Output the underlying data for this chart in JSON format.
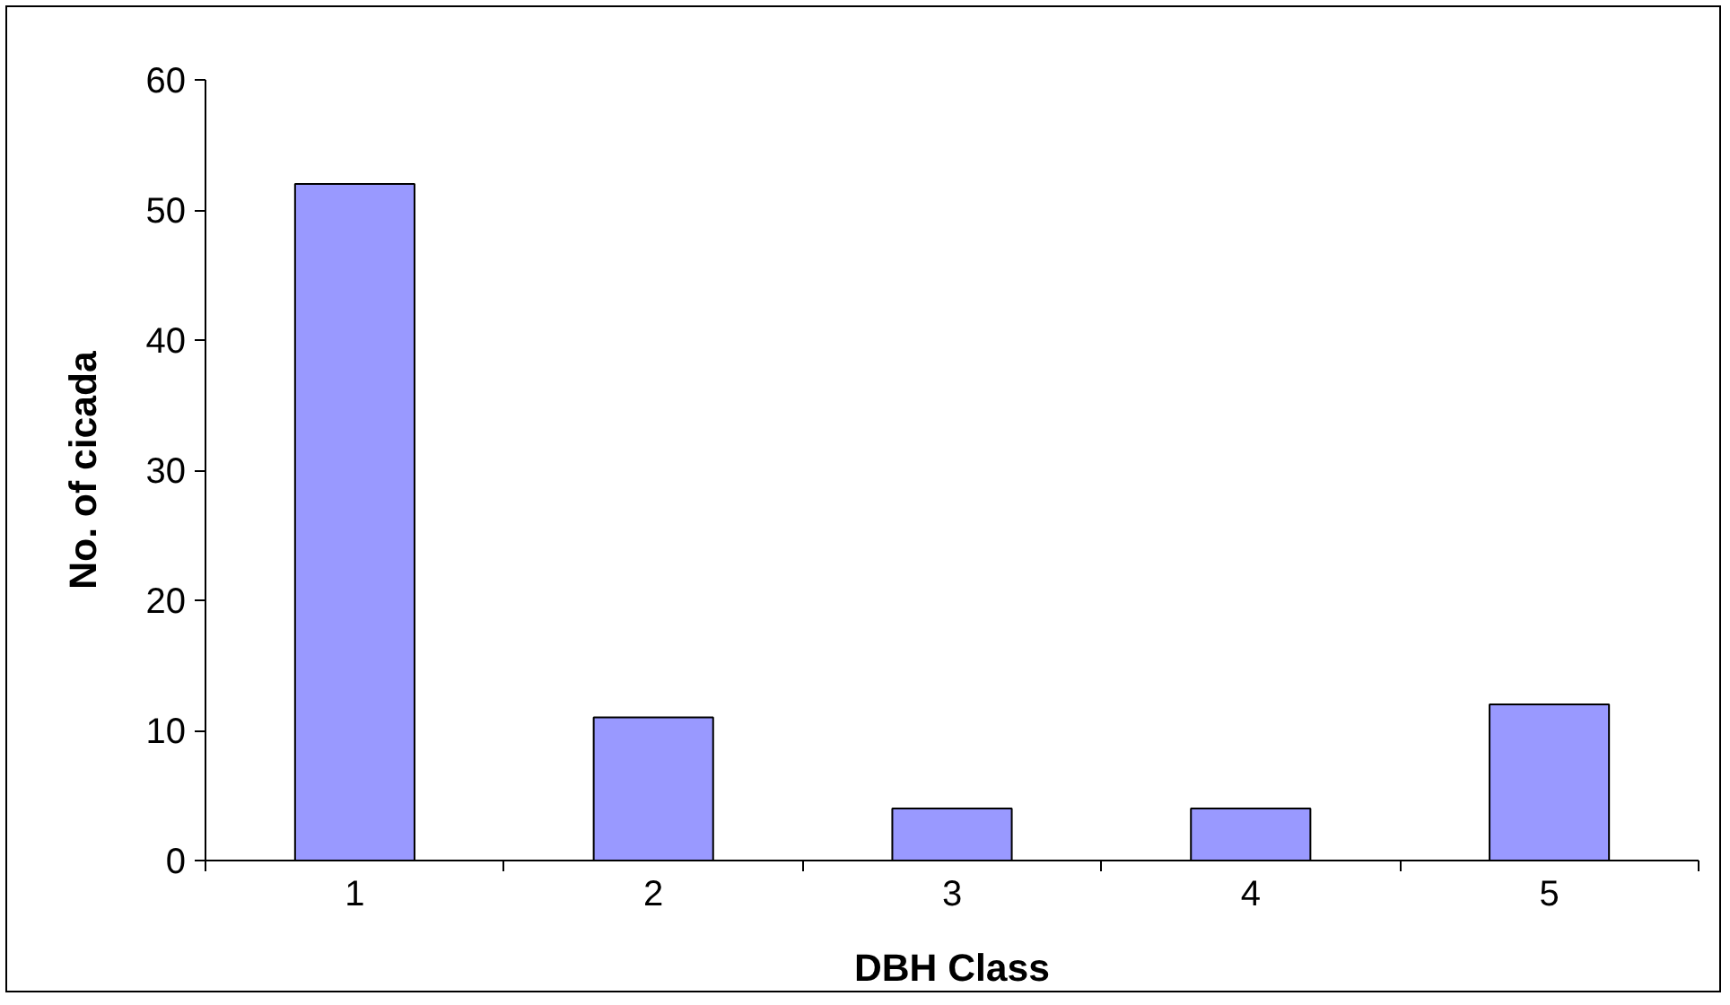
{
  "chart_data": {
    "type": "bar",
    "xlabel": "DBH Class",
    "ylabel": "No. of cicada",
    "categories": [
      "1",
      "2",
      "3",
      "4",
      "5"
    ],
    "values": [
      52,
      11,
      4,
      4,
      12
    ],
    "color": "#9999ff",
    "ylim": [
      0,
      60
    ],
    "yticks": [
      0,
      10,
      20,
      30,
      40,
      50,
      60
    ],
    "grid": false
  }
}
